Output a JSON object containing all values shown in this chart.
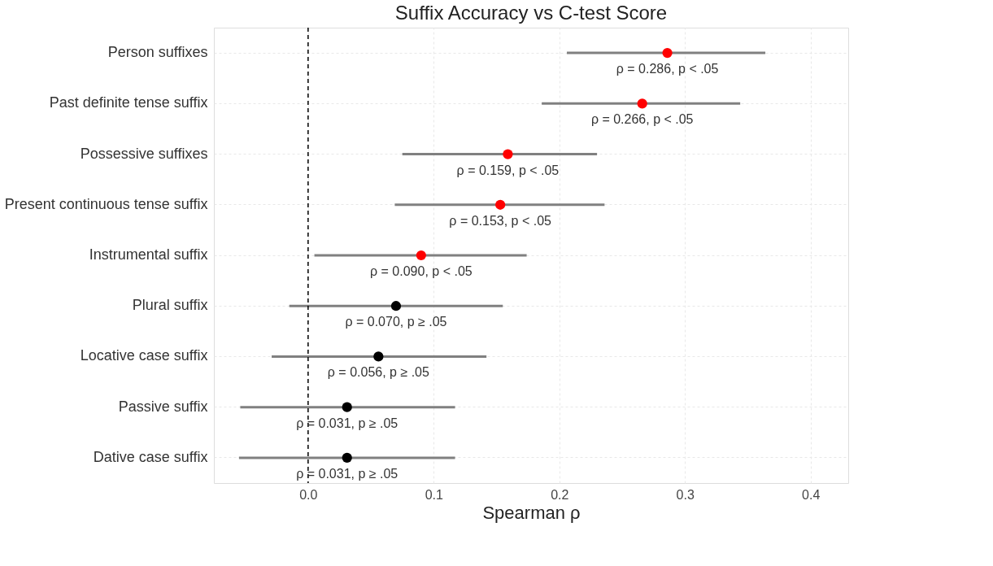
{
  "chart_data": {
    "type": "scatter",
    "orientation": "horizontal",
    "title": "Suffix Accuracy vs C-test Score",
    "xlabel": "Spearman ρ",
    "categories": [
      "Person suffixes",
      "Past definite tense suffix",
      "Possessive suffixes",
      "Present continuous tense suffix",
      "Instrumental suffix",
      "Plural suffix",
      "Locative case suffix",
      "Passive suffix",
      "Dative case suffix"
    ],
    "values": [
      0.286,
      0.266,
      0.159,
      0.153,
      0.09,
      0.07,
      0.056,
      0.031,
      0.031
    ],
    "errors": [
      [
        0.206,
        0.364
      ],
      [
        0.186,
        0.344
      ],
      [
        0.075,
        0.23
      ],
      [
        0.069,
        0.236
      ],
      [
        0.005,
        0.174
      ],
      [
        -0.015,
        0.155
      ],
      [
        -0.029,
        0.142
      ],
      [
        -0.054,
        0.117
      ],
      [
        -0.055,
        0.117
      ]
    ],
    "colors": [
      "#ff0000",
      "#ff0000",
      "#ff0000",
      "#ff0000",
      "#ff0000",
      "#000000",
      "#000000",
      "#000000",
      "#000000"
    ],
    "value_labels": [
      "ρ = 0.286, p < .05",
      "ρ = 0.266, p < .05",
      "ρ = 0.159, p < .05",
      "ρ = 0.153, p < .05",
      "ρ = 0.090, p < .05",
      "ρ = 0.070, p ≥ .05",
      "ρ = 0.056, p ≥ .05",
      "ρ = 0.031, p ≥ .05",
      "ρ = 0.031, p ≥ .05"
    ],
    "xlim": [
      -0.075,
      0.43
    ],
    "xticks": [
      {
        "value": 0,
        "label": "0.0"
      },
      0.1,
      0.2,
      0.3,
      0.4
    ],
    "ref_lines": [
      {
        "axis": "x",
        "value": 0,
        "color": "#000000",
        "line_style": "dashed"
      }
    ],
    "grid": true,
    "marker": "circle"
  }
}
